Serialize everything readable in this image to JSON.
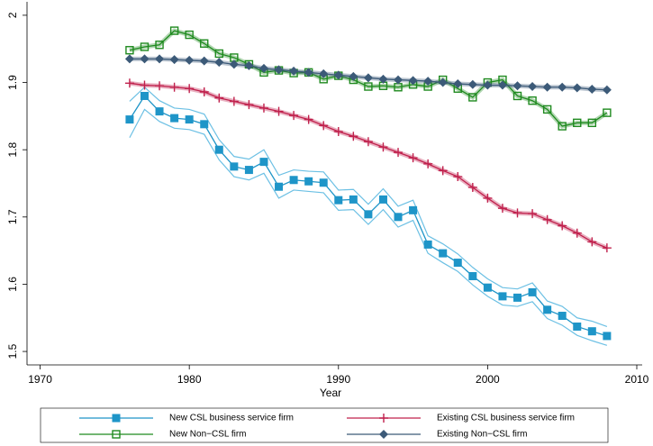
{
  "chart_data": {
    "type": "line",
    "x_label": "Year",
    "x": [
      1976,
      1977,
      1978,
      1979,
      1980,
      1981,
      1982,
      1983,
      1984,
      1985,
      1986,
      1987,
      1988,
      1989,
      1990,
      1991,
      1992,
      1993,
      1994,
      1995,
      1996,
      1997,
      1998,
      1999,
      2000,
      2001,
      2002,
      2003,
      2004,
      2005,
      2006,
      2007,
      2008
    ],
    "xlim": [
      1969,
      2010
    ],
    "xticks": [
      1970,
      1980,
      1990,
      2000,
      2010
    ],
    "ylim": [
      1.48,
      2.02
    ],
    "yticks": [
      1.5,
      1.6,
      1.7,
      1.8,
      1.9,
      2
    ],
    "series": [
      {
        "name": "New CSL business service firm",
        "color": "#1e95c8",
        "band_color": "#6cc0e4",
        "marker": "square",
        "values": [
          1.845,
          1.88,
          1.857,
          1.847,
          1.845,
          1.838,
          1.8,
          1.775,
          1.77,
          1.782,
          1.745,
          1.755,
          1.753,
          1.751,
          1.725,
          1.726,
          1.704,
          1.726,
          1.7,
          1.71,
          1.659,
          1.646,
          1.632,
          1.612,
          1.595,
          1.582,
          1.58,
          1.588,
          1.562,
          1.553,
          1.537,
          1.53,
          1.523
        ],
        "upper": [
          1.872,
          1.893,
          1.873,
          1.862,
          1.86,
          1.853,
          1.815,
          1.79,
          1.786,
          1.8,
          1.762,
          1.77,
          1.768,
          1.767,
          1.74,
          1.741,
          1.719,
          1.742,
          1.716,
          1.725,
          1.672,
          1.66,
          1.645,
          1.625,
          1.608,
          1.595,
          1.593,
          1.602,
          1.575,
          1.567,
          1.55,
          1.545,
          1.537
        ],
        "lower": [
          1.818,
          1.86,
          1.842,
          1.832,
          1.83,
          1.823,
          1.785,
          1.76,
          1.755,
          1.765,
          1.728,
          1.74,
          1.738,
          1.736,
          1.71,
          1.711,
          1.689,
          1.711,
          1.685,
          1.695,
          1.646,
          1.632,
          1.619,
          1.599,
          1.582,
          1.569,
          1.567,
          1.574,
          1.549,
          1.539,
          1.524,
          1.516,
          1.509
        ]
      },
      {
        "name": "Existing CSL business service firm",
        "color": "#c0204c",
        "marker": "plus",
        "values": [
          1.899,
          1.896,
          1.895,
          1.893,
          1.891,
          1.886,
          1.877,
          1.872,
          1.867,
          1.862,
          1.857,
          1.851,
          1.845,
          1.836,
          1.827,
          1.82,
          1.812,
          1.804,
          1.796,
          1.788,
          1.779,
          1.769,
          1.76,
          1.744,
          1.728,
          1.713,
          1.706,
          1.705,
          1.696,
          1.687,
          1.676,
          1.663,
          1.654
        ]
      },
      {
        "name": "New Non−CSL firm",
        "color": "#1f8a1f",
        "marker": "hollow-square",
        "values": [
          1.948,
          1.953,
          1.956,
          1.977,
          1.971,
          1.958,
          1.943,
          1.937,
          1.927,
          1.915,
          1.918,
          1.914,
          1.915,
          1.905,
          1.91,
          1.904,
          1.894,
          1.895,
          1.893,
          1.897,
          1.894,
          1.904,
          1.891,
          1.878,
          1.9,
          1.904,
          1.88,
          1.873,
          1.86,
          1.835,
          1.84,
          1.84,
          1.855
        ]
      },
      {
        "name": "Existing Non−CSL firm",
        "color": "#3c5a78",
        "marker": "diamond",
        "values": [
          1.935,
          1.935,
          1.935,
          1.934,
          1.933,
          1.932,
          1.93,
          1.927,
          1.925,
          1.921,
          1.919,
          1.917,
          1.915,
          1.913,
          1.911,
          1.909,
          1.907,
          1.905,
          1.904,
          1.903,
          1.902,
          1.9,
          1.898,
          1.897,
          1.896,
          1.896,
          1.895,
          1.894,
          1.893,
          1.893,
          1.892,
          1.89,
          1.889
        ]
      }
    ]
  }
}
